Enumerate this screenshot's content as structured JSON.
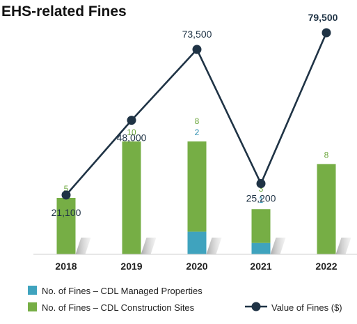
{
  "chart_data": {
    "type": "bar",
    "title": "EHS-related Fines",
    "categories": [
      "2018",
      "2019",
      "2020",
      "2021",
      "2022"
    ],
    "series": [
      {
        "name": "No. of Fines – CDL Managed Properties",
        "kind": "bar",
        "color": "#3fa3be",
        "values": [
          0,
          0,
          2,
          1,
          0
        ],
        "labels": [
          "",
          "",
          "2",
          "1",
          ""
        ]
      },
      {
        "name": "No. of Fines – CDL Construction Sites",
        "kind": "bar",
        "color": "#76ae45",
        "values": [
          5,
          10,
          8,
          3,
          8
        ],
        "labels": [
          "5",
          "10",
          "8",
          "3",
          "8"
        ]
      },
      {
        "name": "Value of Fines ($)",
        "kind": "line",
        "color": "#1f3345",
        "values": [
          21100,
          48000,
          73500,
          25200,
          79500
        ],
        "labels": [
          "21,100",
          "48,000",
          "73,500",
          "25,200",
          "79,500"
        ]
      }
    ],
    "stacked": true,
    "legend_position": "bottom",
    "grid": false
  }
}
